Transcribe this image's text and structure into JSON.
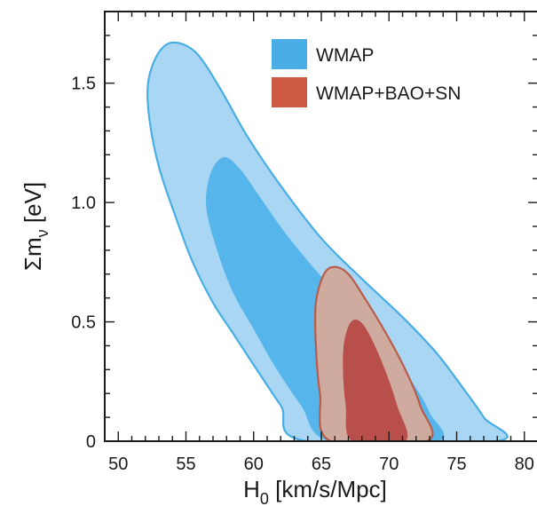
{
  "chart_data": {
    "type": "contour",
    "xlim": [
      49,
      81
    ],
    "ylim": [
      0,
      1.8
    ],
    "x_ticks": [
      {
        "value": 50,
        "label": "50"
      },
      {
        "value": 55,
        "label": "55"
      },
      {
        "value": 60,
        "label": "60"
      },
      {
        "value": 65,
        "label": "65"
      },
      {
        "value": 70,
        "label": "70"
      },
      {
        "value": 75,
        "label": "75"
      },
      {
        "value": 80,
        "label": "80"
      }
    ],
    "y_ticks": [
      {
        "value": 0,
        "label": "0"
      },
      {
        "value": 0.5,
        "label": "0.5"
      },
      {
        "value": 1.0,
        "label": "1.0"
      },
      {
        "value": 1.5,
        "label": "1.5"
      }
    ],
    "xlabel": {
      "main": "H",
      "sub": "0",
      "rest": " [km/s/Mpc]"
    },
    "ylabel": {
      "main": "Σm",
      "sub": "ν",
      "rest": " [eV]"
    },
    "legend": {
      "placement": "top-right",
      "entries": [
        {
          "label": "WMAP",
          "color": "#4aaee6"
        },
        {
          "label": "WMAP+BAO+SN",
          "color": "#cc5a40"
        }
      ]
    },
    "series": [
      {
        "name": "WMAP",
        "regions": [
          {
            "level": "outer",
            "fill": "#a9d6f3",
            "stroke": "#48aee4",
            "points": [
              [
                63.9,
                0
              ],
              [
                62.0,
                0.15
              ],
              [
                60.0,
                0.32
              ],
              [
                58.5,
                0.45
              ],
              [
                57.0,
                0.58
              ],
              [
                55.5,
                0.75
              ],
              [
                54.3,
                0.93
              ],
              [
                53.0,
                1.15
              ],
              [
                52.3,
                1.35
              ],
              [
                52.2,
                1.5
              ],
              [
                52.9,
                1.62
              ],
              [
                54.0,
                1.67
              ],
              [
                55.7,
                1.63
              ],
              [
                57.5,
                1.48
              ],
              [
                59.5,
                1.28
              ],
              [
                62.0,
                1.07
              ],
              [
                65.0,
                0.85
              ],
              [
                68.0,
                0.68
              ],
              [
                71.0,
                0.52
              ],
              [
                73.5,
                0.37
              ],
              [
                75.5,
                0.22
              ],
              [
                77.0,
                0.1
              ],
              [
                77.9,
                0
              ]
            ]
          },
          {
            "level": "inner",
            "fill": "#56b5ea",
            "stroke": "none",
            "points": [
              [
                65.6,
                0
              ],
              [
                63.5,
                0.15
              ],
              [
                61.5,
                0.32
              ],
              [
                60.0,
                0.47
              ],
              [
                58.5,
                0.62
              ],
              [
                57.3,
                0.8
              ],
              [
                56.5,
                0.98
              ],
              [
                56.8,
                1.12
              ],
              [
                57.8,
                1.19
              ],
              [
                59.0,
                1.14
              ],
              [
                60.5,
                1.02
              ],
              [
                62.5,
                0.86
              ],
              [
                65.0,
                0.69
              ],
              [
                67.5,
                0.54
              ],
              [
                70.0,
                0.38
              ],
              [
                71.8,
                0.24
              ],
              [
                73.0,
                0.12
              ],
              [
                73.6,
                0
              ]
            ]
          }
        ]
      },
      {
        "name": "WMAP+BAO+SN",
        "regions": [
          {
            "level": "outer",
            "fill": "#cfaa9e",
            "stroke": "#b95c4a",
            "points": [
              [
                65.7,
                0
              ],
              [
                64.9,
                0.2
              ],
              [
                64.6,
                0.4
              ],
              [
                64.6,
                0.58
              ],
              [
                65.2,
                0.7
              ],
              [
                66.0,
                0.73
              ],
              [
                67.0,
                0.7
              ],
              [
                68.2,
                0.6
              ],
              [
                69.8,
                0.45
              ],
              [
                71.2,
                0.3
              ],
              [
                72.3,
                0.15
              ],
              [
                72.8,
                0
              ]
            ]
          },
          {
            "level": "inner",
            "fill": "#b84f4b",
            "stroke": "none",
            "points": [
              [
                67.3,
                0
              ],
              [
                66.8,
                0.15
              ],
              [
                66.6,
                0.3
              ],
              [
                66.7,
                0.42
              ],
              [
                67.2,
                0.5
              ],
              [
                67.9,
                0.5
              ],
              [
                68.7,
                0.43
              ],
              [
                69.7,
                0.3
              ],
              [
                70.6,
                0.15
              ],
              [
                71.2,
                0
              ]
            ]
          }
        ]
      }
    ]
  }
}
